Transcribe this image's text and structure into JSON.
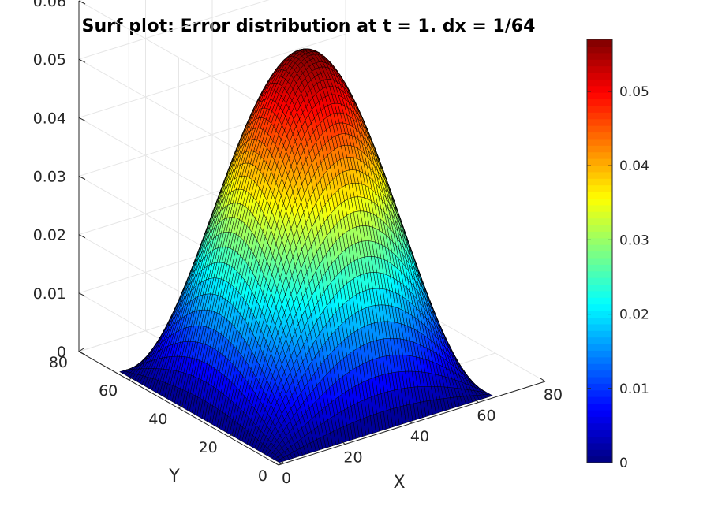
{
  "chart_data": {
    "type": "surface",
    "title": "Surf plot: Error distribution at t = 1. dx = 1/64",
    "xlabel": "X",
    "ylabel": "Y",
    "zlabel": "",
    "xlim": [
      0,
      80
    ],
    "ylim": [
      0,
      80
    ],
    "zlim": [
      0,
      0.06
    ],
    "x_ticks": [
      "0",
      "20",
      "40",
      "60",
      "80"
    ],
    "y_ticks": [
      "0",
      "20",
      "40",
      "60",
      "80"
    ],
    "z_ticks": [
      "0",
      "0.01",
      "0.02",
      "0.03",
      "0.04",
      "0.05",
      "0.06"
    ],
    "grid": true,
    "surface": {
      "function": "peak * sin(pi*(x-1)/64) * sin(pi*(y-1)/64)",
      "x_range": [
        1,
        65
      ],
      "y_range": [
        1,
        65
      ],
      "grid_points": 65,
      "peak": 0.057
    },
    "colorbar": {
      "colormap": "jet",
      "range": [
        0,
        0.057
      ],
      "ticks": [
        "0",
        "0.01",
        "0.02",
        "0.03",
        "0.04",
        "0.05"
      ]
    }
  }
}
